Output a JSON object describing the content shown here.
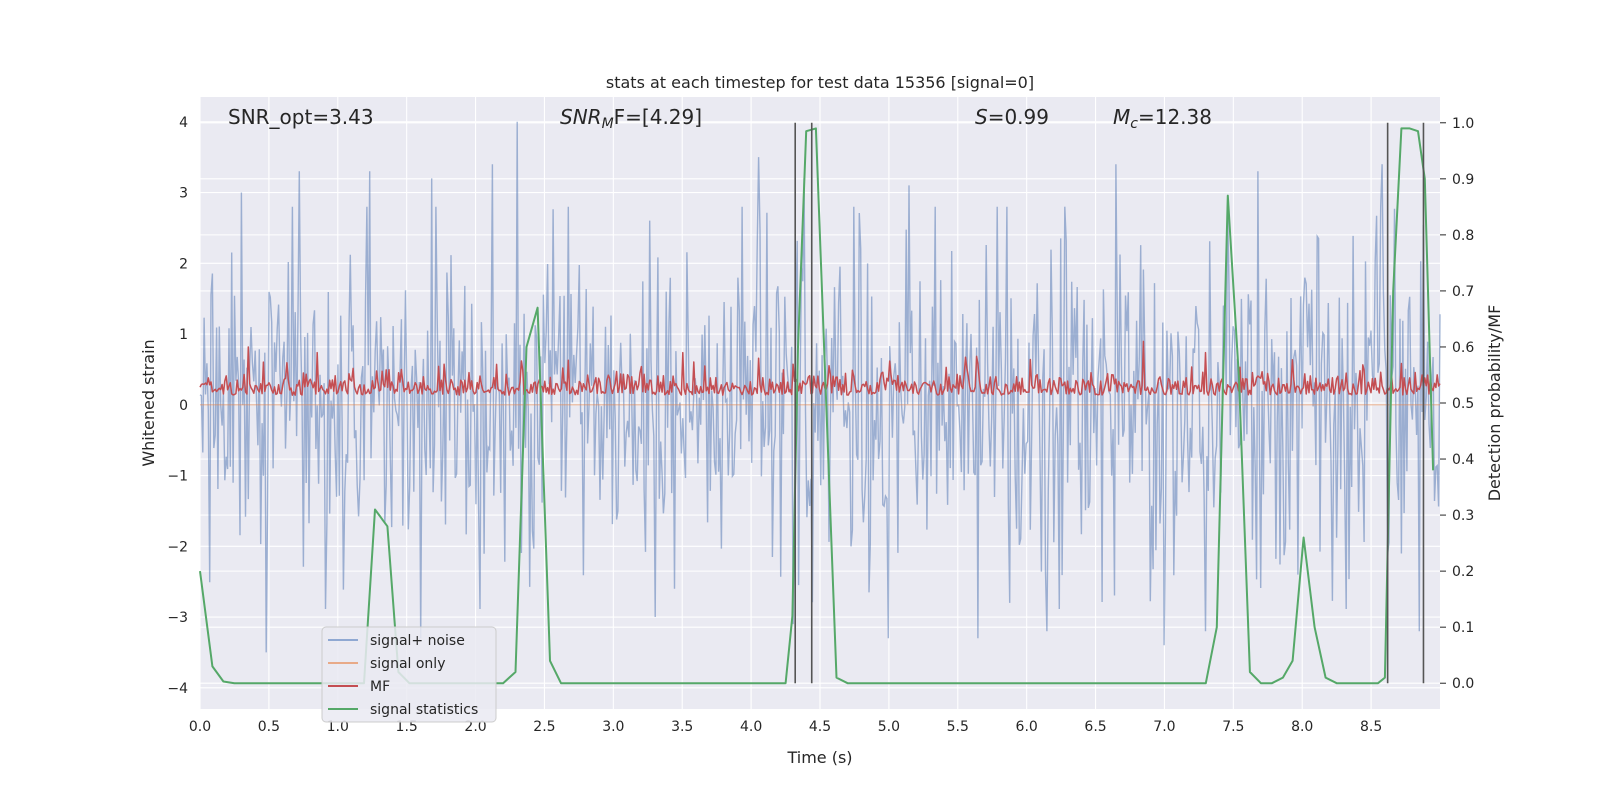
{
  "chart_data": {
    "type": "line",
    "title": "stats at each timestep for test data 15356 [signal=0]",
    "xlabel": "Time (s)",
    "ylabel": "Whitened strain",
    "ylabel_right": "Detection probability/MF",
    "xlim": [
      0.0,
      9.0
    ],
    "ylim": [
      -4.3,
      4.35
    ],
    "ylim_right": [
      -0.046,
      1.046
    ],
    "x_ticks": [
      0.0,
      0.5,
      1.0,
      1.5,
      2.0,
      2.5,
      3.0,
      3.5,
      4.0,
      4.5,
      5.0,
      5.5,
      6.0,
      6.5,
      7.0,
      7.5,
      8.0,
      8.5
    ],
    "x_tick_labels": [
      "0.0",
      "0.5",
      "1.0",
      "1.5",
      "2.0",
      "2.5",
      "3.0",
      "3.5",
      "4.0",
      "4.5",
      "5.0",
      "5.5",
      "6.0",
      "6.5",
      "7.0",
      "7.5",
      "8.0",
      "8.5"
    ],
    "y_ticks": [
      -4,
      -3,
      -2,
      -1,
      0,
      1,
      2,
      3,
      4
    ],
    "y_tick_labels": [
      "−4",
      "−3",
      "−2",
      "−1",
      "0",
      "1",
      "2",
      "3",
      "4"
    ],
    "y_right_ticks": [
      0.0,
      0.1,
      0.2,
      0.3,
      0.4,
      0.5,
      0.6,
      0.7,
      0.8,
      0.9,
      1.0
    ],
    "y_right_tick_labels": [
      "0.0",
      "0.1",
      "0.2",
      "0.3",
      "0.4",
      "0.5",
      "0.6",
      "0.7",
      "0.8",
      "0.9",
      "1.0"
    ],
    "annotations": {
      "snr_opt": "SNR_opt=3.43",
      "snr_mf_main": "SNR",
      "snr_mf_sub": "M",
      "snr_mf_rest": "F=[4.29]",
      "s_main": "S",
      "s_rest": "=0.99",
      "mc_main": "M",
      "mc_sub": "c",
      "mc_rest": "=12.38"
    },
    "series": [
      {
        "name": "signal+ noise",
        "color": "#4c72b0",
        "alpha": 0.5,
        "axis": "left",
        "x_range": [
          0.0,
          9.0
        ],
        "sample_count": 900,
        "approx_envelope": [
          -3.7,
          4.0
        ],
        "spike_highs": [
          [
            0.3,
            3.0
          ],
          [
            0.72,
            3.3
          ],
          [
            1.23,
            3.3
          ],
          [
            1.68,
            3.2
          ],
          [
            2.12,
            3.4
          ],
          [
            2.3,
            4.0
          ],
          [
            4.05,
            3.5
          ],
          [
            4.38,
            3.2
          ],
          [
            5.15,
            3.1
          ],
          [
            6.65,
            3.4
          ],
          [
            7.68,
            3.3
          ],
          [
            8.58,
            3.4
          ]
        ],
        "spike_lows": [
          [
            0.48,
            -3.5
          ],
          [
            1.6,
            -3.3
          ],
          [
            3.3,
            -3.0
          ],
          [
            4.3,
            -3.1
          ],
          [
            5.0,
            -3.3
          ],
          [
            5.65,
            -3.3
          ],
          [
            6.15,
            -3.2
          ],
          [
            7.0,
            -3.4
          ],
          [
            7.3,
            -3.2
          ],
          [
            8.85,
            -3.2
          ]
        ]
      },
      {
        "name": "signal only",
        "color": "#dd8452",
        "axis": "left",
        "x": [
          0.0,
          9.0
        ],
        "y": [
          0.0,
          0.0
        ]
      },
      {
        "name": "MF",
        "color": "#c44e52",
        "axis": "right",
        "x_range": [
          0.0,
          9.0
        ],
        "sample_count": 900,
        "baseline": 0.52,
        "approx_range": [
          0.5,
          0.61
        ],
        "spike_highs": [
          [
            0.35,
            0.6
          ],
          [
            0.85,
            0.59
          ],
          [
            3.5,
            0.59
          ],
          [
            4.05,
            0.58
          ],
          [
            6.85,
            0.61
          ],
          [
            7.3,
            0.59
          ]
        ]
      },
      {
        "name": "signal statistics",
        "color": "#55a868",
        "axis": "right",
        "x": [
          0.0,
          0.09,
          0.17,
          0.25,
          0.34,
          1.1,
          1.19,
          1.27,
          1.36,
          1.44,
          1.52,
          2.2,
          2.29,
          2.37,
          2.45,
          2.54,
          2.62,
          3.55,
          4.25,
          4.3,
          4.34,
          4.4,
          4.47,
          4.53,
          4.62,
          4.7,
          7.3,
          7.38,
          7.46,
          7.54,
          7.62,
          7.7,
          7.78,
          7.86,
          7.93,
          8.01,
          8.09,
          8.17,
          8.25,
          8.55,
          8.6,
          8.66,
          8.72,
          8.78,
          8.84,
          8.89,
          8.95
        ],
        "y": [
          0.2,
          0.03,
          0.003,
          0.0,
          0.0,
          0.0,
          0.0,
          0.31,
          0.28,
          0.02,
          0.0,
          0.0,
          0.02,
          0.6,
          0.67,
          0.04,
          0.0,
          0.0,
          0.0,
          0.12,
          0.6,
          0.985,
          0.99,
          0.6,
          0.01,
          0.0,
          0.0,
          0.1,
          0.87,
          0.55,
          0.02,
          0.0,
          0.0,
          0.01,
          0.04,
          0.26,
          0.1,
          0.01,
          0.0,
          0.0,
          0.01,
          0.7,
          0.99,
          0.99,
          0.985,
          0.9,
          0.38
        ]
      }
    ],
    "vertical_markers": [
      4.32,
      4.44,
      8.62,
      8.88
    ],
    "legend": {
      "placement": "lower-left",
      "entries": [
        {
          "label": "signal+ noise",
          "color": "#8fa8d2"
        },
        {
          "label": "signal only",
          "color": "#e8aa88"
        },
        {
          "label": "MF",
          "color": "#c44e52"
        },
        {
          "label": "signal statistics",
          "color": "#55a868"
        }
      ]
    },
    "grid": true,
    "colors": {
      "plot_background": "#eaeaf2",
      "grid": "#ffffff",
      "marker_line": "#555555"
    }
  }
}
